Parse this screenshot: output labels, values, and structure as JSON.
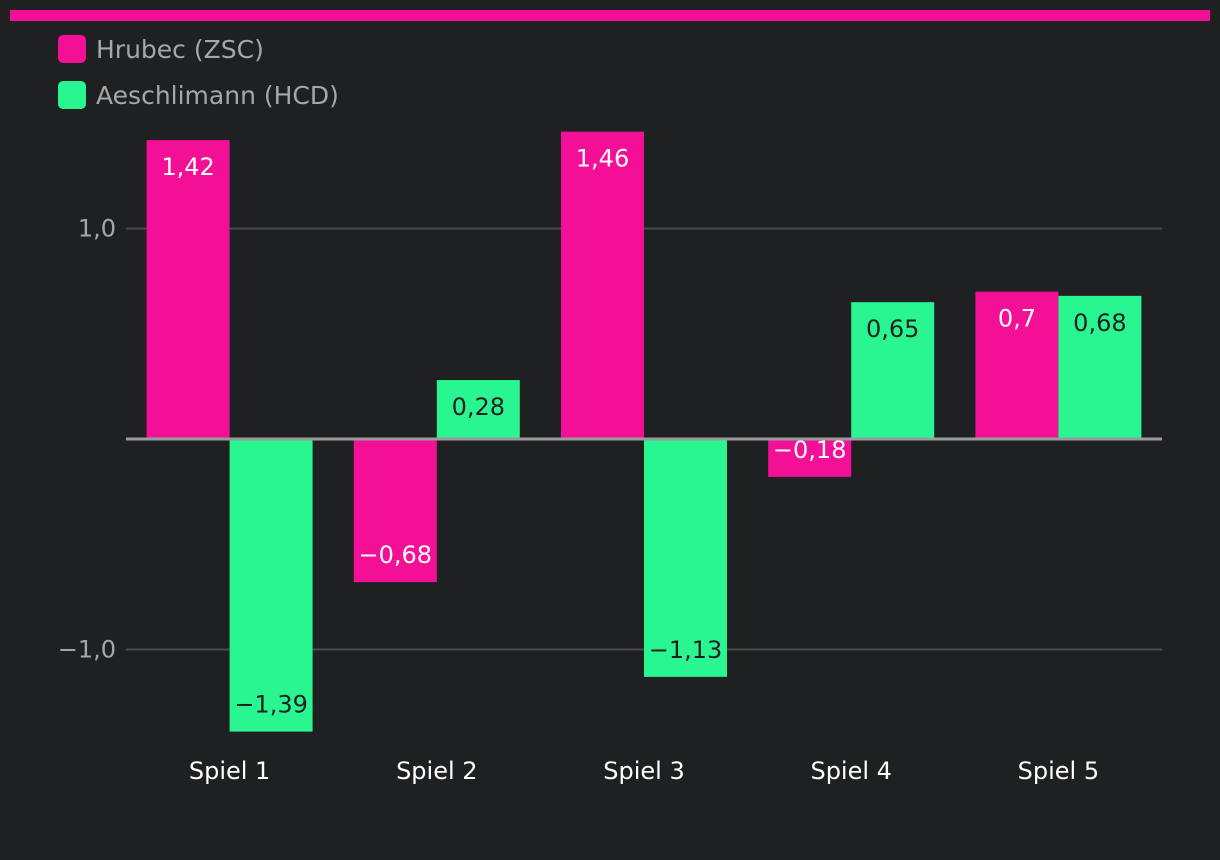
{
  "chart_data": {
    "type": "bar",
    "categories": [
      "Spiel 1",
      "Spiel 2",
      "Spiel 3",
      "Spiel 4",
      "Spiel 5"
    ],
    "series": [
      {
        "name": "Hrubec (ZSC)",
        "values": [
          1.42,
          -0.68,
          1.46,
          -0.18,
          0.7
        ],
        "labels": [
          "1,42",
          "−0,68",
          "1,46",
          "−0,18",
          "0,7"
        ]
      },
      {
        "name": "Aeschlimann (HCD)",
        "values": [
          -1.39,
          0.28,
          -1.13,
          0.65,
          0.68
        ],
        "labels": [
          "−1,39",
          "0,28",
          "−1,13",
          "0,65",
          "0,68"
        ]
      }
    ],
    "yticks": [
      1.0,
      -1.0
    ],
    "ytick_labels": [
      "1,0",
      "−1,0"
    ],
    "ylim": [
      -1.46,
      1.46
    ],
    "grid": true,
    "legend": "top-left"
  },
  "colors": {
    "series": [
      "#f40f97",
      "#29f591"
    ],
    "label_on_series": [
      "#ffffff",
      "#1f2022"
    ],
    "background": "#1f2022",
    "grid": "#4a4b4e",
    "zero_line": "#9a9b9e",
    "axis_text": "#a6a7aa",
    "category_text": "#ffffff",
    "accent_bar": "#f40f97"
  }
}
